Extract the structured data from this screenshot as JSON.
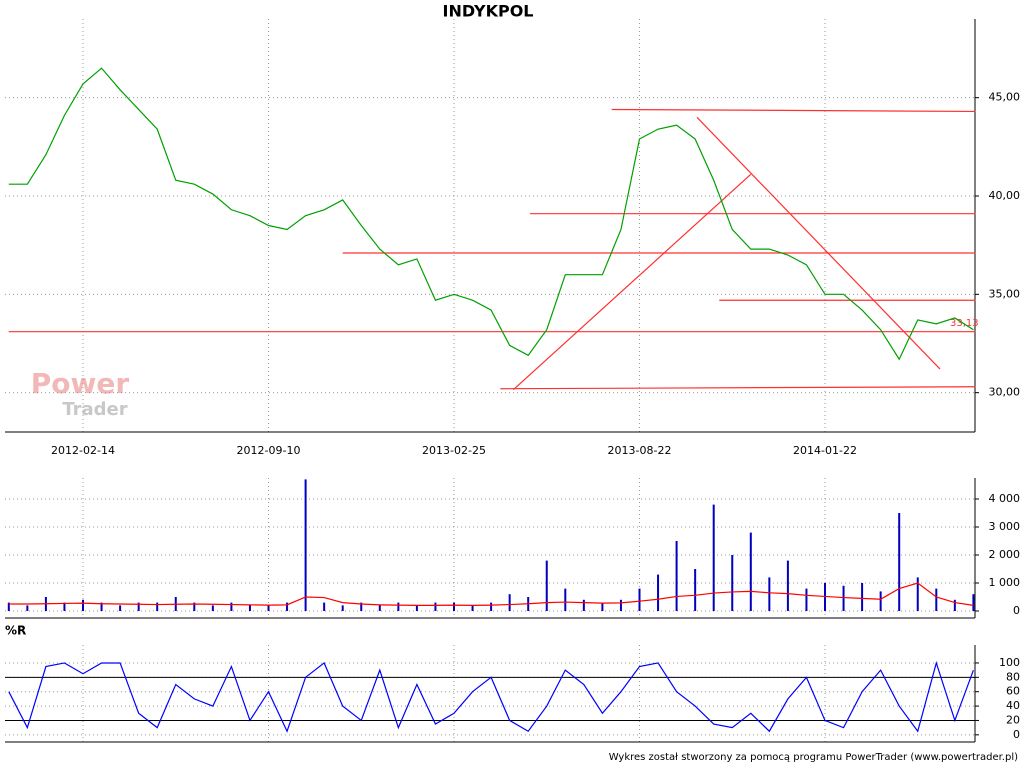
{
  "title": "INDYKPOL",
  "footer": "Wykres został stworzony za pomocą programu PowerTrader (www.powertrader.pl)",
  "watermark": [
    "Power",
    "Trader"
  ],
  "chart_data": [
    {
      "type": "line",
      "color": "#00a000",
      "grid": true,
      "categories": [
        null,
        null,
        null,
        null,
        "2012-02-14",
        null,
        null,
        null,
        null,
        null,
        null,
        null,
        null,
        null,
        "2012-09-10",
        null,
        null,
        null,
        null,
        null,
        null,
        null,
        null,
        null,
        "2013-02-25",
        null,
        null,
        null,
        null,
        null,
        null,
        null,
        null,
        null,
        "2013-08-22",
        null,
        null,
        null,
        null,
        null,
        null,
        null,
        null,
        null,
        "2014-01-22",
        null,
        null,
        null,
        null,
        null,
        null,
        null,
        null
      ],
      "values": [
        40.6,
        40.6,
        42.1,
        44.1,
        45.7,
        46.5,
        45.4,
        44.4,
        43.4,
        40.8,
        40.6,
        40.1,
        39.3,
        39.0,
        38.5,
        38.3,
        39.0,
        39.3,
        39.8,
        38.5,
        37.3,
        36.5,
        36.8,
        34.7,
        35.0,
        34.7,
        34.2,
        32.4,
        31.9,
        33.2,
        36.0,
        36.0,
        36.0,
        38.3,
        42.9,
        43.4,
        43.6,
        42.9,
        40.8,
        38.3,
        37.3,
        37.3,
        37.0,
        36.5,
        35.0,
        35.0,
        34.2,
        33.2,
        31.7,
        33.7,
        33.5,
        33.8,
        33.2
      ],
      "ylim": [
        28,
        49
      ],
      "yticks": [
        {
          "value": 30,
          "label": "30,00"
        },
        {
          "value": 35,
          "label": "35,00"
        },
        {
          "value": 40,
          "label": "40,00"
        },
        {
          "value": 45,
          "label": "45,00"
        }
      ],
      "trendline_color": "#ff3030",
      "trendlines": [
        {
          "x": [
            32.5,
            52.1
          ],
          "y": [
            44.4,
            44.3
          ]
        },
        {
          "x": [
            28.1,
            52.1
          ],
          "y": [
            39.1,
            39.1
          ]
        },
        {
          "x": [
            18.0,
            52.1
          ],
          "y": [
            37.1,
            37.1
          ]
        },
        {
          "x": [
            38.3,
            52.1
          ],
          "y": [
            34.7,
            34.7
          ]
        },
        {
          "x": [
            0,
            52.1
          ],
          "y": [
            33.1,
            33.1
          ]
        },
        {
          "x": [
            26.5,
            52.1
          ],
          "y": [
            30.2,
            30.3
          ]
        },
        {
          "x": [
            27.2,
            40.0
          ],
          "y": [
            30.15,
            41.1
          ]
        },
        {
          "x": [
            37.1,
            50.2
          ],
          "y": [
            44.0,
            31.2
          ]
        }
      ],
      "last_price": {
        "value": 33.13,
        "label": "33,13"
      }
    },
    {
      "type": "bar",
      "color": "#0000c0",
      "values": [
        300,
        200,
        500,
        300,
        400,
        300,
        200,
        300,
        300,
        500,
        300,
        200,
        300,
        200,
        200,
        300,
        4700,
        300,
        200,
        300,
        200,
        300,
        200,
        300,
        300,
        200,
        300,
        600,
        500,
        1800,
        800,
        400,
        300,
        400,
        800,
        1300,
        2500,
        1500,
        3800,
        2000,
        2800,
        1200,
        1800,
        800,
        1000,
        900,
        1000,
        700,
        3500,
        1200,
        800,
        400,
        600
      ],
      "average": {
        "color": "#ff0000",
        "values": [
          250,
          250,
          260,
          270,
          280,
          260,
          250,
          240,
          230,
          240,
          250,
          240,
          230,
          220,
          210,
          220,
          500,
          480,
          300,
          250,
          220,
          210,
          200,
          200,
          210,
          200,
          210,
          230,
          260,
          300,
          320,
          300,
          280,
          290,
          350,
          420,
          520,
          560,
          640,
          680,
          700,
          650,
          620,
          560,
          520,
          480,
          450,
          420,
          800,
          1000,
          500,
          300,
          200
        ]
      },
      "ylim": [
        -250,
        4750
      ],
      "yticks": [
        0,
        {
          "value": 1000,
          "label": "1 000"
        },
        {
          "value": 2000,
          "label": "2 000"
        },
        {
          "value": 3000,
          "label": "3 000"
        },
        {
          "value": 4000,
          "label": "4 000"
        }
      ]
    },
    {
      "type": "line",
      "title": "%R",
      "color": "#0000ff",
      "values": [
        60,
        10,
        95,
        100,
        85,
        100,
        100,
        30,
        10,
        70,
        50,
        40,
        95,
        20,
        60,
        5,
        80,
        100,
        40,
        20,
        90,
        10,
        70,
        15,
        30,
        60,
        80,
        20,
        5,
        40,
        90,
        70,
        30,
        60,
        95,
        100,
        60,
        40,
        15,
        10,
        30,
        5,
        50,
        80,
        20,
        10,
        60,
        90,
        40,
        5,
        100,
        20,
        90
      ],
      "ylim": [
        -10,
        125
      ],
      "yticks": [
        0,
        20,
        40,
        60,
        80,
        100
      ],
      "levels": [
        20,
        80
      ]
    }
  ]
}
